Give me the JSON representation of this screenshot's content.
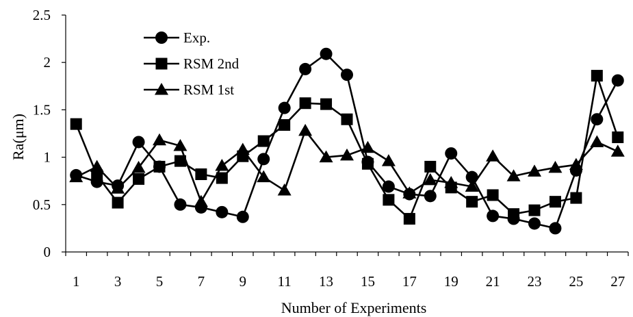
{
  "chart_data": {
    "type": "line",
    "title": "",
    "xlabel": "Number of Experiments",
    "ylabel": "Ra(μm)",
    "xlim": [
      0.5,
      27.5
    ],
    "ylim": [
      0,
      2.5
    ],
    "x": [
      1,
      2,
      3,
      4,
      5,
      6,
      7,
      8,
      9,
      10,
      11,
      12,
      13,
      14,
      15,
      16,
      17,
      18,
      19,
      20,
      21,
      22,
      23,
      24,
      25,
      26,
      27
    ],
    "x_tick_labels": [
      "1",
      "3",
      "5",
      "7",
      "9",
      "11",
      "13",
      "15",
      "17",
      "19",
      "21",
      "23",
      "25",
      "27"
    ],
    "y_tick_labels": [
      "0",
      "0.5",
      "1",
      "1.5",
      "2",
      "2.5"
    ],
    "y_ticks": [
      0,
      0.5,
      1,
      1.5,
      2,
      2.5
    ],
    "grid": false,
    "legend_position": "top-left",
    "series": [
      {
        "name": "Exp.",
        "marker": "circle",
        "color": "#000000",
        "values": [
          0.81,
          0.74,
          0.7,
          1.16,
          0.9,
          0.5,
          0.47,
          0.42,
          0.37,
          0.98,
          1.52,
          1.93,
          2.09,
          1.87,
          0.95,
          0.69,
          0.61,
          0.59,
          1.04,
          0.79,
          0.38,
          0.35,
          0.3,
          0.25,
          0.86,
          1.4,
          1.81
        ]
      },
      {
        "name": "RSM 2nd",
        "marker": "square",
        "color": "#000000",
        "values": [
          1.35,
          0.81,
          0.52,
          0.77,
          0.9,
          0.96,
          0.82,
          0.78,
          1.01,
          1.17,
          1.34,
          1.57,
          1.56,
          1.4,
          0.93,
          0.55,
          0.35,
          0.9,
          0.68,
          0.53,
          0.6,
          0.4,
          0.44,
          0.53,
          0.57,
          1.86,
          1.21
        ]
      },
      {
        "name": "RSM 1st",
        "marker": "triangle",
        "color": "#000000",
        "values": [
          0.79,
          0.9,
          0.67,
          0.89,
          1.18,
          1.12,
          0.53,
          0.91,
          1.08,
          0.79,
          0.65,
          1.28,
          1.0,
          1.02,
          1.1,
          0.96,
          0.62,
          0.76,
          0.73,
          0.69,
          1.01,
          0.8,
          0.85,
          0.89,
          0.92,
          1.16,
          1.06
        ]
      }
    ]
  }
}
